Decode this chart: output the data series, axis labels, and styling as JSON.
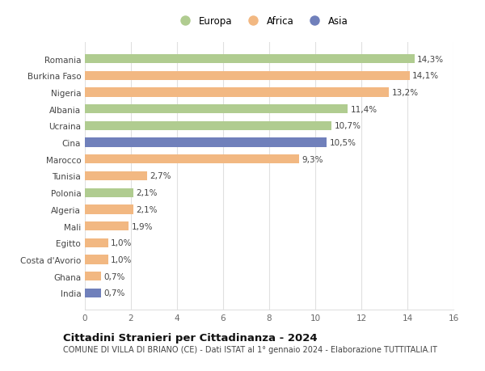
{
  "categories": [
    "India",
    "Ghana",
    "Costa d'Avorio",
    "Egitto",
    "Mali",
    "Algeria",
    "Polonia",
    "Tunisia",
    "Marocco",
    "Cina",
    "Ucraina",
    "Albania",
    "Nigeria",
    "Burkina Faso",
    "Romania"
  ],
  "values": [
    0.7,
    0.7,
    1.0,
    1.0,
    1.9,
    2.1,
    2.1,
    2.7,
    9.3,
    10.5,
    10.7,
    11.4,
    13.2,
    14.1,
    14.3
  ],
  "continents": [
    "Asia",
    "Africa",
    "Africa",
    "Africa",
    "Africa",
    "Africa",
    "Europa",
    "Africa",
    "Africa",
    "Asia",
    "Europa",
    "Europa",
    "Africa",
    "Africa",
    "Europa"
  ],
  "labels": [
    "0,7%",
    "0,7%",
    "1,0%",
    "1,0%",
    "1,9%",
    "2,1%",
    "2,1%",
    "2,7%",
    "9,3%",
    "10,5%",
    "10,7%",
    "11,4%",
    "13,2%",
    "14,1%",
    "14,3%"
  ],
  "colors": {
    "Europa": "#b0cc90",
    "Africa": "#f2b882",
    "Asia": "#7080bb"
  },
  "legend_labels": [
    "Europa",
    "Africa",
    "Asia"
  ],
  "legend_colors": [
    "#b0cc90",
    "#f2b882",
    "#7080bb"
  ],
  "xlim": [
    0,
    16
  ],
  "xticks": [
    0,
    2,
    4,
    6,
    8,
    10,
    12,
    14,
    16
  ],
  "title1": "Cittadini Stranieri per Cittadinanza - 2024",
  "title2": "COMUNE DI VILLA DI BRIANO (CE) - Dati ISTAT al 1° gennaio 2024 - Elaborazione TUTTITALIA.IT",
  "background_color": "#ffffff",
  "grid_color": "#e0e0e0",
  "bar_height": 0.55,
  "label_fontsize": 7.5,
  "ytick_fontsize": 7.5,
  "xtick_fontsize": 7.5,
  "legend_fontsize": 8.5,
  "title1_fontsize": 9.5,
  "title2_fontsize": 7.0
}
